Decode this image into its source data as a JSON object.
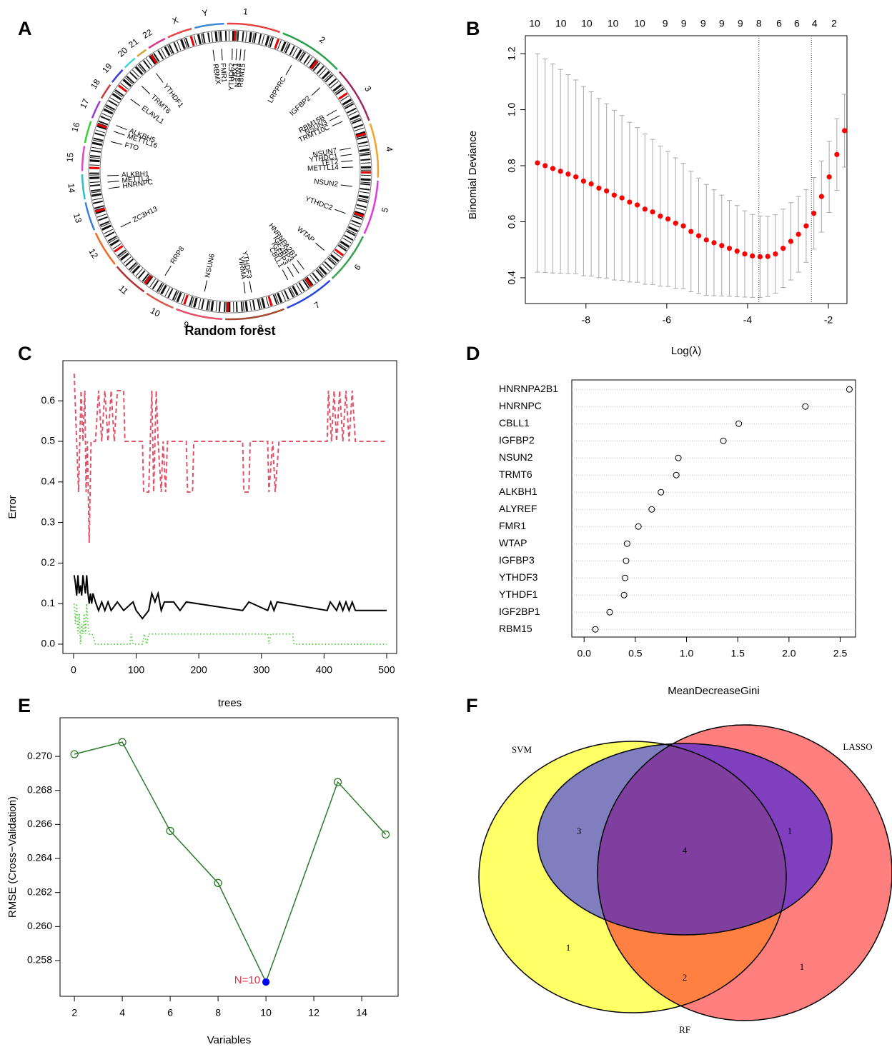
{
  "chart_data": [
    {
      "panel": "A",
      "type": "circos",
      "title": "Random forest",
      "chromosomes": [
        "1",
        "2",
        "3",
        "4",
        "5",
        "6",
        "7",
        "8",
        "9",
        "10",
        "11",
        "12",
        "13",
        "14",
        "15",
        "16",
        "17",
        "18",
        "19",
        "20",
        "21",
        "22",
        "X",
        "Y"
      ],
      "genes": [
        "FMR1",
        "RBMX",
        "YTHDF2",
        "YBX1",
        "NSUN4",
        "RBM15",
        "LRPPRC",
        "IGFBP2",
        "RBM15B",
        "NSUN3",
        "TRMT10C",
        "NSUN7",
        "YTHDC1",
        "TET2",
        "METTL14",
        "NSUN2",
        "YTHDC2",
        "WTAP",
        "HNRNPA2B1",
        "IGF2BP3",
        "IGFBP3",
        "CBLL1",
        "YTHDF3",
        "VIRMA",
        "NSUN6",
        "RRP8",
        "ZC3H13",
        "HNRNPC",
        "METTL3",
        "ALKBH1",
        "FTO",
        "METTL16",
        "ALKBH5",
        "ELAVL1",
        "TRMT6",
        "YTHDF1"
      ]
    },
    {
      "panel": "B",
      "type": "errorbar",
      "x_label": "Log(λ)",
      "y_label": "Binomial Deviance",
      "color": "#ff0000",
      "error_color": "#a9a9a9",
      "x": [
        -9.2,
        -9.01,
        -8.82,
        -8.63,
        -8.44,
        -8.25,
        -8.06,
        -7.87,
        -7.68,
        -7.49,
        -7.3,
        -7.11,
        -6.92,
        -6.73,
        -6.54,
        -6.35,
        -6.16,
        -5.97,
        -5.78,
        -5.59,
        -5.4,
        -5.21,
        -5.02,
        -4.83,
        -4.64,
        -4.45,
        -4.26,
        -4.07,
        -3.88,
        -3.69,
        -3.5,
        -3.31,
        -3.12,
        -2.93,
        -2.74,
        -2.55,
        -2.36,
        -2.17,
        -1.98,
        -1.79,
        -1.6
      ],
      "values": [
        0.81,
        0.8,
        0.79,
        0.78,
        0.77,
        0.76,
        0.745,
        0.735,
        0.72,
        0.71,
        0.695,
        0.685,
        0.67,
        0.66,
        0.645,
        0.635,
        0.62,
        0.61,
        0.595,
        0.585,
        0.565,
        0.55,
        0.535,
        0.525,
        0.515,
        0.505,
        0.495,
        0.485,
        0.478,
        0.475,
        0.476,
        0.485,
        0.505,
        0.53,
        0.555,
        0.585,
        0.63,
        0.69,
        0.76,
        0.84,
        0.925
      ],
      "errors": [
        0.39,
        0.381,
        0.373,
        0.364,
        0.355,
        0.346,
        0.338,
        0.329,
        0.32,
        0.311,
        0.303,
        0.294,
        0.285,
        0.276,
        0.268,
        0.259,
        0.25,
        0.241,
        0.233,
        0.224,
        0.215,
        0.206,
        0.198,
        0.189,
        0.18,
        0.171,
        0.163,
        0.154,
        0.148,
        0.145,
        0.143,
        0.14,
        0.14,
        0.138,
        0.135,
        0.13,
        0.128,
        0.127,
        0.127,
        0.128,
        0.13
      ],
      "vlines": [
        -3.72,
        -2.42
      ],
      "top_ticks": [
        {
          "value": -9.27,
          "label": "10"
        },
        {
          "value": -8.62,
          "label": "10"
        },
        {
          "value": -7.98,
          "label": "10"
        },
        {
          "value": -7.33,
          "label": "10"
        },
        {
          "value": -6.67,
          "label": "10"
        },
        {
          "value": -6.04,
          "label": "9"
        },
        {
          "value": -5.58,
          "label": "9"
        },
        {
          "value": -5.1,
          "label": "9"
        },
        {
          "value": -4.64,
          "label": "9"
        },
        {
          "value": -4.18,
          "label": "9"
        },
        {
          "value": -3.72,
          "label": "8"
        },
        {
          "value": -3.22,
          "label": "6"
        },
        {
          "value": -2.78,
          "label": "6"
        },
        {
          "value": -2.34,
          "label": "4"
        },
        {
          "value": -1.86,
          "label": "2"
        }
      ],
      "xlim": [
        -9.5,
        -1.54
      ],
      "xticks": [
        -8,
        -6,
        -4,
        -2
      ],
      "ylim": [
        0.308,
        1.264
      ],
      "yticks": [
        0.4,
        0.6,
        0.8,
        {
          "value": 1.0,
          "label": "1.0"
        },
        1.2
      ]
    },
    {
      "panel": "C",
      "type": "line",
      "x_label": "trees",
      "y_label": "Error",
      "xlim": [
        -17,
        516
      ],
      "xticks": [
        0,
        100,
        200,
        300,
        400,
        500
      ],
      "ylim": [
        -0.023,
        0.699
      ],
      "yticks": [
        {
          "value": 0,
          "label": "0.0"
        },
        0.1,
        0.2,
        0.3,
        0.4,
        0.5,
        0.6
      ],
      "series": [
        {
          "color": "#000000",
          "linestyle": "solid",
          "x": [
            1,
            3,
            5,
            7,
            9,
            11,
            13,
            15,
            17,
            19,
            21,
            23,
            25,
            27,
            29,
            31,
            35,
            40,
            45,
            50,
            55,
            60,
            70,
            80,
            95,
            100,
            110,
            120,
            125,
            130,
            135,
            140,
            145,
            160,
            170,
            180,
            270,
            280,
            310,
            315,
            320,
            325,
            405,
            410,
            420,
            425,
            430,
            435,
            440,
            445,
            450,
            500
          ],
          "values": [
            0.17,
            0.15,
            0.12,
            0.17,
            0.125,
            0.145,
            0.12,
            0.17,
            0.145,
            0.125,
            0.17,
            0.125,
            0.1,
            0.125,
            0.1,
            0.125,
            0.104,
            0.083,
            0.104,
            0.083,
            0.104,
            0.083,
            0.104,
            0.083,
            0.104,
            0.083,
            0.063,
            0.083,
            0.125,
            0.104,
            0.125,
            0.083,
            0.104,
            0.104,
            0.083,
            0.104,
            0.083,
            0.104,
            0.083,
            0.104,
            0.083,
            0.104,
            0.083,
            0.104,
            0.083,
            0.104,
            0.083,
            0.104,
            0.083,
            0.104,
            0.083,
            0.083
          ]
        },
        {
          "color": "#df536b",
          "linestyle": "dashed",
          "x": [
            1,
            5,
            8,
            12,
            15,
            18,
            20,
            22,
            25,
            28,
            35,
            40,
            45,
            50,
            55,
            60,
            65,
            70,
            80,
            82,
            110,
            112,
            120,
            125,
            128,
            132,
            135,
            140,
            143,
            147,
            150,
            180,
            182,
            190,
            192,
            270,
            272,
            280,
            282,
            310,
            312,
            318,
            322,
            328,
            405,
            407,
            412,
            416,
            420,
            425,
            430,
            435,
            440,
            445,
            450,
            500
          ],
          "values": [
            0.667,
            0.5,
            0.375,
            0.625,
            0.5,
            0.625,
            0.375,
            0.5,
            0.25,
            0.5,
            0.5,
            0.625,
            0.5,
            0.625,
            0.5,
            0.625,
            0.5,
            0.625,
            0.625,
            0.5,
            0.5,
            0.375,
            0.375,
            0.625,
            0.375,
            0.625,
            0.5,
            0.375,
            0.5,
            0.375,
            0.5,
            0.5,
            0.375,
            0.375,
            0.5,
            0.5,
            0.375,
            0.375,
            0.5,
            0.5,
            0.375,
            0.5,
            0.375,
            0.5,
            0.5,
            0.625,
            0.5,
            0.625,
            0.5,
            0.625,
            0.5,
            0.625,
            0.5,
            0.625,
            0.5,
            0.5
          ]
        },
        {
          "color": "#61d04f",
          "linestyle": "dotted",
          "x": [
            1,
            3,
            5,
            7,
            9,
            11,
            13,
            15,
            17,
            19,
            21,
            23,
            25,
            30,
            35,
            90,
            92,
            95,
            110,
            113,
            117,
            120,
            310,
            312,
            315,
            350,
            352,
            500
          ],
          "values": [
            0.1,
            0.05,
            0.1,
            0.025,
            0.075,
            0,
            0.05,
            0.025,
            0.075,
            0.025,
            0.1,
            0.05,
            0.025,
            0.025,
            0,
            0,
            0.025,
            0,
            0,
            0.025,
            0,
            0.025,
            0.025,
            0,
            0.025,
            0.025,
            0,
            0
          ]
        }
      ]
    },
    {
      "panel": "D",
      "type": "dotchart",
      "x_label": "MeanDecreaseGini",
      "categories": [
        "HNRNPA2B1",
        "HNRNPC",
        "CBLL1",
        "IGFBP2",
        "NSUN2",
        "TRMT6",
        "ALKBH1",
        "ALYREF",
        "FMR1",
        "WTAP",
        "IGFBP3",
        "YTHDF3",
        "YTHDF1",
        "IGF2BP1",
        "RBM15"
      ],
      "values": [
        2.59,
        2.16,
        1.51,
        1.36,
        0.92,
        0.9,
        0.75,
        0.66,
        0.53,
        0.42,
        0.41,
        0.4,
        0.39,
        0.25,
        0.11
      ],
      "xlim": [
        -0.12,
        2.65
      ],
      "xticks": [
        {
          "value": 0,
          "label": "0.0"
        },
        0.5,
        {
          "value": 1,
          "label": "1.0"
        },
        1.5,
        {
          "value": 2,
          "label": "2.0"
        },
        2.5
      ],
      "grid": true
    },
    {
      "panel": "E",
      "type": "line",
      "x_label": "Variables",
      "y_label": "RMSE (Cross−Validation)",
      "color": "#2b7a2b",
      "highlight_color": "#0000ff",
      "annotation": "N=10",
      "annotation_color": "#e0314b",
      "x": [
        2,
        4,
        6,
        8,
        10,
        13,
        15
      ],
      "values": [
        0.27013,
        0.27084,
        0.26562,
        0.26256,
        0.25674,
        0.26849,
        0.26541
      ],
      "xlim": [
        1.4,
        15.52
      ],
      "xticks": [
        2,
        4,
        6,
        8,
        10,
        12,
        14
      ],
      "ylim": [
        0.2559,
        0.27227
      ],
      "yticks": [
        {
          "value": 0.258,
          "label": "0.258"
        },
        {
          "value": 0.26,
          "label": "0.260"
        },
        {
          "value": 0.262,
          "label": "0.262"
        },
        {
          "value": 0.264,
          "label": "0.264"
        },
        {
          "value": 0.266,
          "label": "0.266"
        },
        {
          "value": 0.268,
          "label": "0.268"
        },
        {
          "value": 0.27,
          "label": "0.270"
        }
      ]
    },
    {
      "panel": "F",
      "type": "venn",
      "sets": [
        "SVM",
        "LASSO",
        "RF"
      ],
      "set_colors": [
        "#ffff66",
        "#ff7f7f",
        "#7f7fbf"
      ],
      "overlap_colors": [
        "#ff8040",
        "#7f3fbf",
        "#7f3f9f"
      ],
      "counts": [
        3,
        1,
        4,
        1,
        2,
        1
      ]
    }
  ]
}
